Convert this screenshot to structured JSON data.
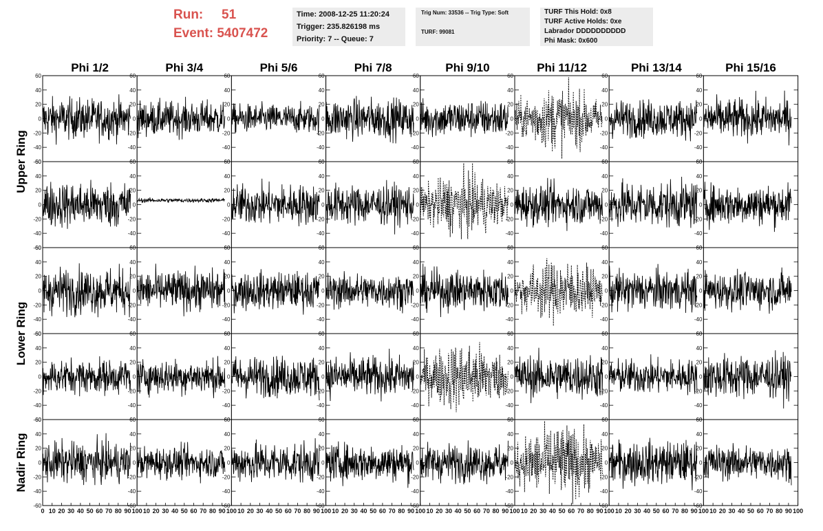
{
  "header": {
    "run_label": "Run:",
    "run_value": "51",
    "event_label": "Event:",
    "event_value": "5407472",
    "time": "Time: 2008-12-25 11:20:24",
    "trigger": "Trigger: 235.826198 ms",
    "priority": "Priority: 7 -- Queue: 7",
    "trig_num": "Trig Num: 33536 -- Trig Type: Soft",
    "turf": "TURF: 99081",
    "turf_hold": "TURF This Hold: 0x8",
    "turf_active": "TURF Active Holds: 0xe",
    "labrador": "Labrador DDDDDDDDDD",
    "phi_mask": "Phi Mask: 0x600"
  },
  "colors": {
    "header_text": "#d9534f",
    "info_bg": "#ececec",
    "trace": "#000000"
  },
  "chart_data": {
    "type": "line",
    "columns": [
      "Phi 1/2",
      "Phi 3/4",
      "Phi 5/6",
      "Phi 7/8",
      "Phi 9/10",
      "Phi 11/12",
      "Phi 13/14",
      "Phi 15/16"
    ],
    "rows": [
      "Upper Ring",
      "Upper Ring",
      "Lower Ring",
      "Lower Ring",
      "Nadir Ring"
    ],
    "row_labels": [
      {
        "text": "Upper Ring",
        "spans_rows": [
          0,
          1
        ]
      },
      {
        "text": "Lower Ring",
        "spans_rows": [
          2,
          3
        ]
      },
      {
        "text": "Nadir Ring",
        "spans_rows": [
          4,
          4
        ]
      }
    ],
    "xlim": [
      0,
      100
    ],
    "ylim": [
      -60,
      60
    ],
    "yticks": [
      -60,
      -40,
      -20,
      0,
      20,
      40,
      60
    ],
    "xticks": [
      0,
      10,
      20,
      30,
      40,
      50,
      60,
      70,
      80,
      90,
      100
    ],
    "samples_per_trace": 260,
    "grid": false,
    "panels": [
      [
        {
          "amp": 14,
          "style": "solid"
        },
        {
          "amp": 12,
          "style": "solid"
        },
        {
          "amp": 10,
          "style": "solid"
        },
        {
          "amp": 14,
          "style": "solid"
        },
        {
          "amp": 13,
          "style": "solid"
        },
        {
          "amp": 18,
          "style": "dashed"
        },
        {
          "amp": 13,
          "style": "solid"
        },
        {
          "amp": 14,
          "style": "solid"
        }
      ],
      [
        {
          "amp": 16,
          "style": "solid"
        },
        {
          "amp": 1.5,
          "offset": 6,
          "style": "solid"
        },
        {
          "amp": 14,
          "style": "solid"
        },
        {
          "amp": 14,
          "style": "solid"
        },
        {
          "amp": 18,
          "style": "dashed"
        },
        {
          "amp": 14,
          "style": "solid"
        },
        {
          "amp": 16,
          "style": "solid"
        },
        {
          "amp": 14,
          "style": "solid"
        }
      ],
      [
        {
          "amp": 16,
          "style": "solid"
        },
        {
          "amp": 14,
          "style": "solid"
        },
        {
          "amp": 13,
          "style": "solid"
        },
        {
          "amp": 12,
          "style": "solid"
        },
        {
          "amp": 14,
          "style": "solid"
        },
        {
          "amp": 18,
          "style": "dashed"
        },
        {
          "amp": 14,
          "style": "solid"
        },
        {
          "amp": 13,
          "style": "solid"
        }
      ],
      [
        {
          "amp": 12,
          "style": "solid"
        },
        {
          "amp": 12,
          "style": "solid"
        },
        {
          "amp": 14,
          "style": "solid"
        },
        {
          "amp": 14,
          "style": "solid"
        },
        {
          "amp": 20,
          "style": "dashed"
        },
        {
          "amp": 15,
          "style": "solid"
        },
        {
          "amp": 12,
          "style": "solid"
        },
        {
          "amp": 15,
          "style": "solid"
        }
      ],
      [
        {
          "amp": 14,
          "style": "solid"
        },
        {
          "amp": 11,
          "style": "solid"
        },
        {
          "amp": 14,
          "style": "solid"
        },
        {
          "amp": 13,
          "style": "solid"
        },
        {
          "amp": 13,
          "style": "solid"
        },
        {
          "amp": 22,
          "style": "dashed"
        },
        {
          "amp": 15,
          "style": "solid"
        },
        {
          "amp": 12,
          "style": "solid"
        }
      ]
    ]
  }
}
